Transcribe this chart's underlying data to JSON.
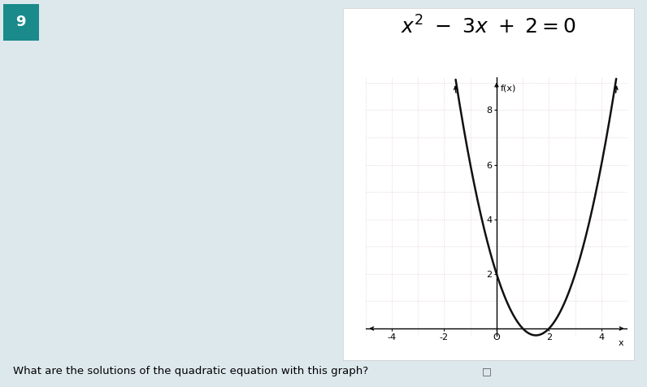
{
  "title": "x^2 - 3x + 2 = 0",
  "xlim": [
    -5,
    5
  ],
  "ylim": [
    -0.3,
    9.2
  ],
  "xticks": [
    -4,
    -2,
    0,
    2,
    4
  ],
  "yticks": [
    2,
    4,
    6,
    8
  ],
  "xlabel": "x",
  "ylabel": "f(x)",
  "background_color": "#dde8ed",
  "graph_bg": "#ffffff",
  "outer_box_bg": "#ffffff",
  "grid_color": "#c8a0a0",
  "grid_alpha": 0.6,
  "curve_color": "#111111",
  "curve_linewidth": 1.8,
  "number9_bg": "#1a8a8a",
  "number9_color": "#ffffff",
  "bottom_text": "What are the solutions of the quadratic equation with this graph?",
  "title_fontsize": 18,
  "axis_fontsize": 8,
  "label_fontsize": 8
}
